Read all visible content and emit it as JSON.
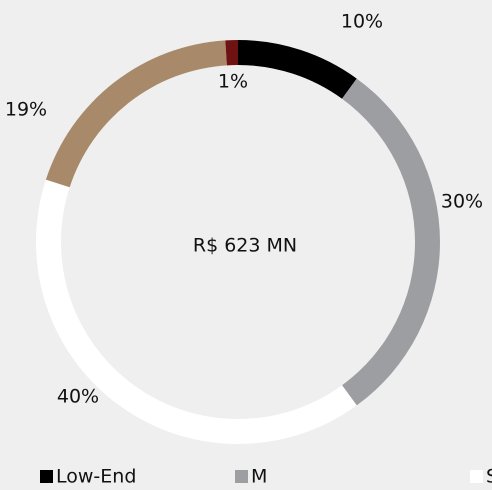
{
  "chart_data": {
    "type": "donut",
    "center_label": "R$ 623 MN",
    "series": [
      {
        "name": "Low-End",
        "color": "#000000",
        "value": 10,
        "value_label": "10%"
      },
      {
        "name": "M",
        "color": "#9d9ea1",
        "value": 30,
        "value_label": "30%"
      },
      {
        "name": "Smart Living",
        "color": "#ffffff",
        "value": 40,
        "value_label": "40%"
      },
      {
        "name": null,
        "color": "#a8896a",
        "value": 19,
        "value_label": "19%"
      },
      {
        "name": null,
        "color": "#6e1212",
        "value": 1,
        "value_label": "1%"
      }
    ]
  }
}
